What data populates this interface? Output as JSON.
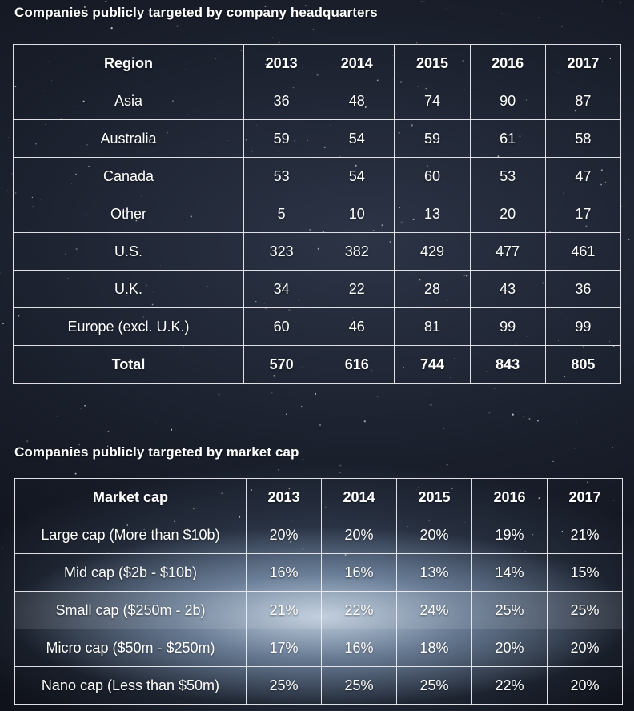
{
  "chart_data": [
    {
      "type": "table",
      "title": "Companies publicly targeted by company headquarters",
      "columns": [
        "Region",
        "2013",
        "2014",
        "2015",
        "2016",
        "2017"
      ],
      "rows": [
        [
          "Asia",
          "36",
          "48",
          "74",
          "90",
          "87"
        ],
        [
          "Australia",
          "59",
          "54",
          "59",
          "61",
          "58"
        ],
        [
          "Canada",
          "53",
          "54",
          "60",
          "53",
          "47"
        ],
        [
          "Other",
          "5",
          "10",
          "13",
          "20",
          "17"
        ],
        [
          "U.S.",
          "323",
          "382",
          "429",
          "477",
          "461"
        ],
        [
          "U.K.",
          "34",
          "22",
          "28",
          "43",
          "36"
        ],
        [
          "Europe (excl. U.K.)",
          "60",
          "46",
          "81",
          "99",
          "99"
        ]
      ],
      "total_row": [
        "Total",
        "570",
        "616",
        "744",
        "843",
        "805"
      ]
    },
    {
      "type": "table",
      "title": "Companies publicly targeted by market cap",
      "columns": [
        "Market cap",
        "2013",
        "2014",
        "2015",
        "2016",
        "2017"
      ],
      "rows": [
        [
          "Large cap (More than $10b)",
          "20%",
          "20%",
          "20%",
          "19%",
          "21%"
        ],
        [
          "Mid cap ($2b - $10b)",
          "16%",
          "16%",
          "13%",
          "14%",
          "15%"
        ],
        [
          "Small cap ($250m - 2b)",
          "21%",
          "22%",
          "24%",
          "25%",
          "25%"
        ],
        [
          "Micro cap ($50m - $250m)",
          "17%",
          "16%",
          "18%",
          "20%",
          "20%"
        ],
        [
          "Nano cap (Less than $50m)",
          "25%",
          "25%",
          "25%",
          "22%",
          "20%"
        ]
      ]
    }
  ]
}
